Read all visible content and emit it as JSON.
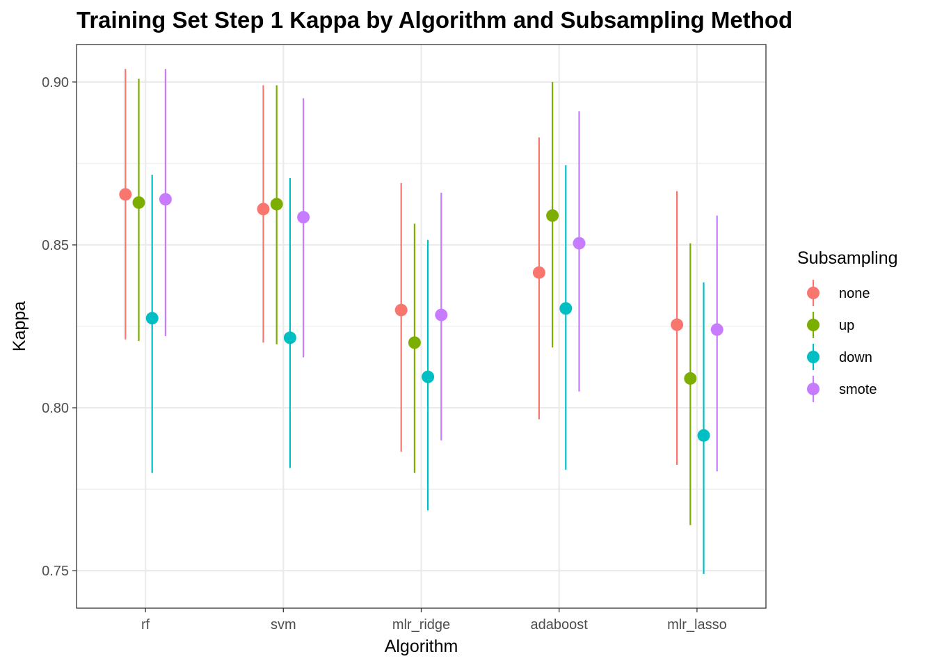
{
  "chart_data": {
    "type": "scatter",
    "title": "Training Set Step 1 Kappa by Algorithm and Subsampling Method",
    "xlabel": "Algorithm",
    "ylabel": "Kappa",
    "categories": [
      "rf",
      "svm",
      "mlr_ridge",
      "adaboost",
      "mlr_lasso"
    ],
    "ylim": [
      0.7385,
      0.9115
    ],
    "yticks": [
      0.75,
      0.8,
      0.85,
      0.9
    ],
    "ytick_labels": [
      "0.75",
      "0.80",
      "0.85",
      "0.90"
    ],
    "grid": true,
    "legend": {
      "title": "Subsampling",
      "position": "right"
    },
    "series": [
      {
        "name": "none",
        "color": "#F8766D",
        "values": [
          0.8655,
          0.861,
          0.83,
          0.8415,
          0.8255
        ],
        "lower": [
          0.821,
          0.82,
          0.7865,
          0.7965,
          0.7825
        ],
        "upper": [
          0.904,
          0.899,
          0.869,
          0.883,
          0.8665
        ]
      },
      {
        "name": "up",
        "color": "#7CAE00",
        "values": [
          0.863,
          0.8625,
          0.82,
          0.859,
          0.809
        ],
        "lower": [
          0.8205,
          0.8195,
          0.78,
          0.8185,
          0.764
        ],
        "upper": [
          0.901,
          0.899,
          0.8565,
          0.9,
          0.8505
        ]
      },
      {
        "name": "down",
        "color": "#00BFC4",
        "values": [
          0.8275,
          0.8215,
          0.8095,
          0.8305,
          0.7915
        ],
        "lower": [
          0.78,
          0.7815,
          0.7685,
          0.781,
          0.749
        ],
        "upper": [
          0.8715,
          0.8705,
          0.8515,
          0.8745,
          0.8385
        ]
      },
      {
        "name": "smote",
        "color": "#C77CFF",
        "values": [
          0.864,
          0.8585,
          0.8285,
          0.8505,
          0.824
        ],
        "lower": [
          0.822,
          0.8155,
          0.79,
          0.805,
          0.7805
        ],
        "upper": [
          0.904,
          0.895,
          0.866,
          0.891,
          0.859
        ]
      }
    ]
  }
}
